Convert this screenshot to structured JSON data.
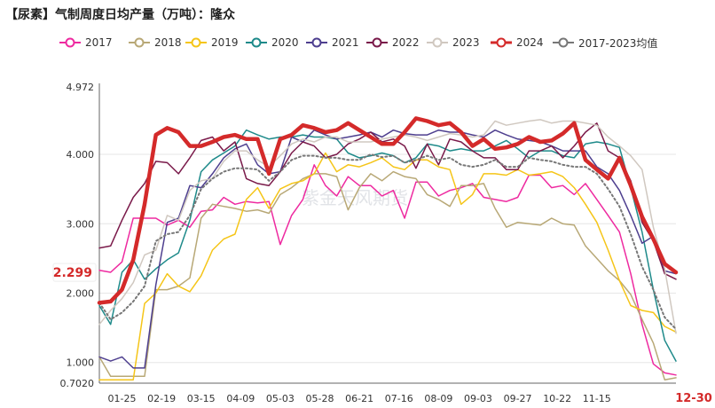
{
  "title": "【尿素】气制周度日均产量（万吨）：隆众",
  "watermark": "紫金天风期货",
  "chart_data": {
    "type": "line",
    "title": "【尿素】气制周度日均产量（万吨）：隆众",
    "ylim": [
      0.702,
      4.972
    ],
    "y_ticks": [
      "4.972",
      "4.000",
      "3.000",
      "2.000",
      "1.000",
      "0.7020"
    ],
    "y_tick_values": [
      4.972,
      4.0,
      3.0,
      2.0,
      1.0,
      0.702
    ],
    "x_ticks": [
      "01-25",
      "02-19",
      "03-15",
      "04-09",
      "05-03",
      "05-28",
      "06-21",
      "07-16",
      "08-09",
      "09-03",
      "09-27",
      "10-22",
      "11-15",
      "12-30"
    ],
    "x_tick_weeks": [
      3,
      6.5,
      10,
      13.5,
      17,
      20.5,
      24,
      27.5,
      31,
      34.5,
      38,
      41.5,
      45,
      52
    ],
    "highlight_label": "12-30",
    "last_value_label": "2.299",
    "last_value": 2.299,
    "grid": true,
    "series": [
      {
        "name": "2017",
        "color": "#ee2aa0",
        "width": 1.5,
        "dash": "",
        "values": [
          2.33,
          2.3,
          2.45,
          3.08,
          3.08,
          3.08,
          2.98,
          3.05,
          2.95,
          3.18,
          3.2,
          3.38,
          3.28,
          3.32,
          3.3,
          3.32,
          2.7,
          3.12,
          3.35,
          3.85,
          3.55,
          3.4,
          3.68,
          3.55,
          3.55,
          3.4,
          3.48,
          3.08,
          3.6,
          3.6,
          3.4,
          3.48,
          3.52,
          3.58,
          3.38,
          3.35,
          3.32,
          3.38,
          3.7,
          3.7,
          3.52,
          3.55,
          3.42,
          3.58,
          3.35,
          3.12,
          2.88,
          2.28,
          1.55,
          0.98,
          0.85,
          0.82
        ]
      },
      {
        "name": "2018",
        "color": "#b8a876",
        "width": 1.5,
        "dash": "",
        "values": [
          1.08,
          0.8,
          0.8,
          0.8,
          0.8,
          2.05,
          2.05,
          2.1,
          2.22,
          3.08,
          3.28,
          3.25,
          3.22,
          3.18,
          3.2,
          3.15,
          3.42,
          3.52,
          3.65,
          3.72,
          3.72,
          3.68,
          3.2,
          3.52,
          3.72,
          3.62,
          3.75,
          3.68,
          3.65,
          3.42,
          3.35,
          3.25,
          3.55,
          3.55,
          3.58,
          3.22,
          2.95,
          3.02,
          3.0,
          2.98,
          3.08,
          3.0,
          2.98,
          2.68,
          2.5,
          2.32,
          2.18,
          1.98,
          1.62,
          1.28,
          0.75,
          0.78
        ]
      },
      {
        "name": "2019",
        "color": "#f5c518",
        "width": 1.5,
        "dash": "",
        "values": [
          0.75,
          0.75,
          0.75,
          0.75,
          1.85,
          2.0,
          2.28,
          2.1,
          2.02,
          2.25,
          2.62,
          2.78,
          2.85,
          3.35,
          3.52,
          3.22,
          3.5,
          3.58,
          3.62,
          3.72,
          4.02,
          3.75,
          3.85,
          3.82,
          3.88,
          3.95,
          3.82,
          3.78,
          3.92,
          3.92,
          3.82,
          3.78,
          3.28,
          3.42,
          3.72,
          3.72,
          3.7,
          3.78,
          3.7,
          3.72,
          3.75,
          3.68,
          3.52,
          3.28,
          3.02,
          2.62,
          2.18,
          1.82,
          1.75,
          1.72,
          1.52,
          1.44
        ]
      },
      {
        "name": "2020",
        "color": "#1e8a8a",
        "width": 1.5,
        "dash": "",
        "values": [
          1.82,
          1.55,
          2.3,
          2.48,
          2.2,
          2.35,
          2.48,
          2.58,
          3.05,
          3.75,
          3.92,
          4.02,
          4.12,
          4.35,
          4.28,
          4.22,
          4.25,
          4.25,
          4.28,
          4.25,
          4.25,
          4.22,
          4.02,
          3.95,
          3.98,
          4.02,
          3.98,
          3.88,
          3.95,
          4.15,
          4.12,
          4.05,
          4.08,
          4.05,
          4.05,
          4.12,
          4.2,
          4.08,
          3.95,
          4.05,
          4.05,
          3.98,
          3.95,
          4.15,
          4.18,
          4.15,
          4.1,
          3.52,
          2.88,
          2.05,
          1.32,
          1.02
        ]
      },
      {
        "name": "2021",
        "color": "#4e3f8f",
        "width": 1.5,
        "dash": "",
        "values": [
          1.08,
          1.02,
          1.08,
          0.92,
          0.92,
          2.12,
          3.02,
          3.08,
          3.55,
          3.52,
          3.72,
          3.95,
          4.08,
          4.15,
          3.85,
          3.72,
          3.75,
          4.25,
          4.18,
          4.35,
          4.28,
          4.22,
          4.25,
          4.28,
          4.32,
          4.25,
          4.35,
          4.3,
          4.28,
          4.28,
          4.35,
          4.32,
          4.32,
          4.28,
          4.25,
          4.35,
          4.28,
          4.22,
          4.2,
          4.18,
          4.12,
          4.05,
          4.05,
          4.05,
          3.82,
          3.72,
          3.48,
          3.12,
          2.72,
          2.82,
          2.32,
          2.28
        ]
      },
      {
        "name": "2022",
        "color": "#7a1a4a",
        "width": 1.5,
        "dash": "",
        "values": [
          2.65,
          2.68,
          3.05,
          3.38,
          3.58,
          3.9,
          3.88,
          3.72,
          3.95,
          4.2,
          4.25,
          4.05,
          4.18,
          3.65,
          3.58,
          3.55,
          3.75,
          4.02,
          4.18,
          4.12,
          3.95,
          4.0,
          4.15,
          4.22,
          4.32,
          4.18,
          4.22,
          4.12,
          3.8,
          4.15,
          3.85,
          4.22,
          4.18,
          4.05,
          3.95,
          3.95,
          3.78,
          3.78,
          4.05,
          4.05,
          4.12,
          3.95,
          4.12,
          4.32,
          4.45,
          4.05,
          3.95,
          3.62,
          3.02,
          2.75,
          2.28,
          2.2
        ]
      },
      {
        "name": "2023",
        "color": "#d0c8c0",
        "width": 1.5,
        "dash": "",
        "values": [
          1.55,
          1.75,
          1.92,
          2.15,
          2.55,
          2.62,
          3.12,
          3.05,
          3.48,
          3.62,
          3.65,
          3.9,
          4.05,
          4.05,
          3.92,
          3.82,
          3.98,
          4.15,
          4.22,
          4.18,
          4.25,
          4.25,
          4.18,
          4.18,
          4.18,
          4.22,
          4.25,
          4.28,
          4.25,
          4.2,
          4.25,
          4.3,
          4.28,
          4.25,
          4.28,
          4.48,
          4.42,
          4.45,
          4.48,
          4.5,
          4.45,
          4.48,
          4.48,
          4.45,
          4.42,
          4.25,
          4.12,
          3.98,
          3.78,
          2.95,
          2.35,
          1.42
        ]
      },
      {
        "name": "2024",
        "color": "#d42a2a",
        "width": 4.5,
        "dash": "",
        "values": [
          1.86,
          1.88,
          2.05,
          2.48,
          3.28,
          4.28,
          4.38,
          4.32,
          4.12,
          4.12,
          4.18,
          4.25,
          4.28,
          4.22,
          4.22,
          3.72,
          4.22,
          4.28,
          4.42,
          4.38,
          4.32,
          4.35,
          4.45,
          4.35,
          4.25,
          4.15,
          4.15,
          4.32,
          4.52,
          4.48,
          4.42,
          4.45,
          4.32,
          4.12,
          4.22,
          4.08,
          4.1,
          4.15,
          4.25,
          4.18,
          4.2,
          4.3,
          4.45,
          3.92,
          3.78,
          3.65,
          3.95,
          3.55,
          3.1,
          2.78,
          2.42,
          2.3
        ]
      },
      {
        "name": "2017-2023均值",
        "color": "#777777",
        "width": 2,
        "dash": "2,3",
        "values": [
          1.86,
          1.62,
          1.72,
          1.88,
          2.1,
          2.75,
          2.85,
          2.88,
          3.12,
          3.5,
          3.65,
          3.75,
          3.8,
          3.8,
          3.78,
          3.62,
          3.75,
          3.92,
          3.98,
          3.98,
          3.95,
          3.95,
          3.92,
          3.92,
          4.0,
          3.96,
          3.98,
          3.88,
          3.92,
          3.98,
          3.92,
          3.95,
          3.85,
          3.82,
          3.85,
          3.92,
          3.82,
          3.82,
          3.95,
          3.92,
          3.9,
          3.85,
          3.82,
          3.82,
          3.72,
          3.5,
          3.25,
          2.85,
          2.38,
          2.05,
          1.65,
          1.48
        ]
      }
    ]
  }
}
